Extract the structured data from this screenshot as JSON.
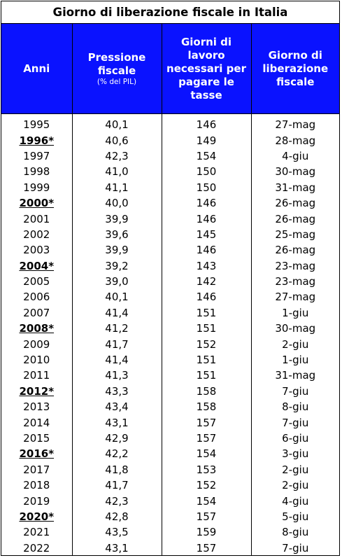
{
  "title": "Giorno di liberazione fiscale in Italia",
  "headers": {
    "anni": "Anni",
    "pressione": "Pressione fiscale",
    "pressione_sub": "(% del PIL)",
    "giorni": "Giorni di lavoro necessari per pagare le tasse",
    "giorno": "Giorno di liberazione fiscale"
  },
  "colors": {
    "header_bg": "#0a12ff",
    "header_text": "#ffffff"
  },
  "rows": [
    {
      "year": "1995",
      "pressione": "40,1",
      "giorni": "146",
      "giorno": "27-mag",
      "bold": false
    },
    {
      "year": "1996*",
      "pressione": "40,6",
      "giorni": "149",
      "giorno": "28-mag",
      "bold": true
    },
    {
      "year": "1997",
      "pressione": "42,3",
      "giorni": "154",
      "giorno": "4-giu",
      "bold": false
    },
    {
      "year": "1998",
      "pressione": "41,0",
      "giorni": "150",
      "giorno": "30-mag",
      "bold": false
    },
    {
      "year": "1999",
      "pressione": "41,1",
      "giorni": "150",
      "giorno": "31-mag",
      "bold": false
    },
    {
      "year": "2000*",
      "pressione": "40,0",
      "giorni": "146",
      "giorno": "26-mag",
      "bold": true
    },
    {
      "year": "2001",
      "pressione": "39,9",
      "giorni": "146",
      "giorno": "26-mag",
      "bold": false
    },
    {
      "year": "2002",
      "pressione": "39,6",
      "giorni": "145",
      "giorno": "25-mag",
      "bold": false
    },
    {
      "year": "2003",
      "pressione": "39,9",
      "giorni": "146",
      "giorno": "26-mag",
      "bold": false
    },
    {
      "year": "2004*",
      "pressione": "39,2",
      "giorni": "143",
      "giorno": "23-mag",
      "bold": true
    },
    {
      "year": "2005",
      "pressione": "39,0",
      "giorni": "142",
      "giorno": "23-mag",
      "bold": false
    },
    {
      "year": "2006",
      "pressione": "40,1",
      "giorni": "146",
      "giorno": "27-mag",
      "bold": false
    },
    {
      "year": "2007",
      "pressione": "41,4",
      "giorni": "151",
      "giorno": "1-giu",
      "bold": false
    },
    {
      "year": "2008*",
      "pressione": "41,2",
      "giorni": "151",
      "giorno": "30-mag",
      "bold": true
    },
    {
      "year": "2009",
      "pressione": "41,7",
      "giorni": "152",
      "giorno": "2-giu",
      "bold": false
    },
    {
      "year": "2010",
      "pressione": "41,4",
      "giorni": "151",
      "giorno": "1-giu",
      "bold": false
    },
    {
      "year": "2011",
      "pressione": "41,3",
      "giorni": "151",
      "giorno": "31-mag",
      "bold": false
    },
    {
      "year": "2012*",
      "pressione": "43,3",
      "giorni": "158",
      "giorno": "7-giu",
      "bold": true
    },
    {
      "year": "2013",
      "pressione": "43,4",
      "giorni": "158",
      "giorno": "8-giu",
      "bold": false
    },
    {
      "year": "2014",
      "pressione": "43,1",
      "giorni": "157",
      "giorno": "7-giu",
      "bold": false
    },
    {
      "year": "2015",
      "pressione": "42,9",
      "giorni": "157",
      "giorno": "6-giu",
      "bold": false
    },
    {
      "year": "2016*",
      "pressione": "42,2",
      "giorni": "154",
      "giorno": "3-giu",
      "bold": true
    },
    {
      "year": "2017",
      "pressione": "41,8",
      "giorni": "153",
      "giorno": "2-giu",
      "bold": false
    },
    {
      "year": "2018",
      "pressione": "41,7",
      "giorni": "152",
      "giorno": "2-giu",
      "bold": false
    },
    {
      "year": "2019",
      "pressione": "42,3",
      "giorni": "154",
      "giorno": "4-giu",
      "bold": false
    },
    {
      "year": "2020*",
      "pressione": "42,8",
      "giorni": "157",
      "giorno": "5-giu",
      "bold": true
    },
    {
      "year": "2021",
      "pressione": "43,5",
      "giorni": "159",
      "giorno": "8-giu",
      "bold": false
    },
    {
      "year": "2022",
      "pressione": "43,1",
      "giorni": "157",
      "giorno": "7-giu",
      "bold": false
    }
  ]
}
